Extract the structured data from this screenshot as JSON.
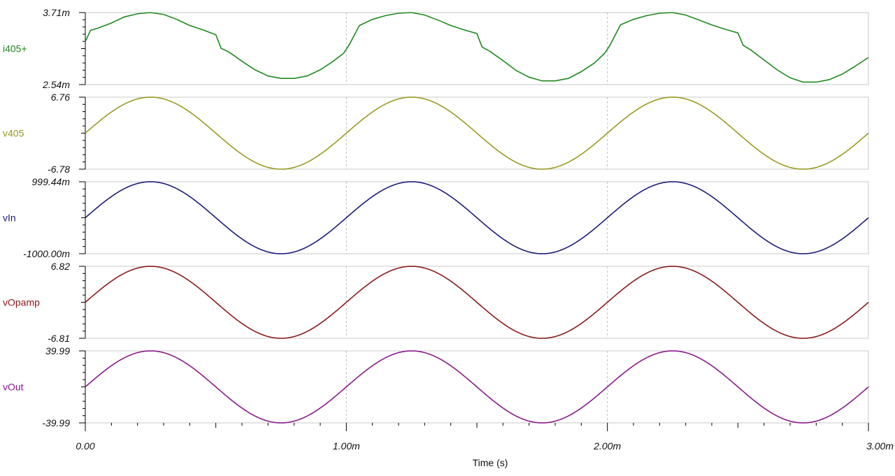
{
  "chart_data": {
    "type": "line",
    "xlabel": "Time (s)",
    "x_ticks": [
      "0.00",
      "1.00m",
      "2.00m",
      "3.00m"
    ],
    "xlim": [
      0,
      3
    ],
    "x_unit": "ms",
    "grid": "vertical dashed at major x ticks",
    "panels": [
      {
        "name": "i405+",
        "color": "#1f8a1f",
        "ylim_labels": [
          "3.71m",
          "2.54m"
        ],
        "ylim": [
          2.54,
          3.71
        ],
        "y_unit": "mA",
        "x": [
          0.0,
          0.02,
          0.05,
          0.1,
          0.15,
          0.2,
          0.25,
          0.3,
          0.35,
          0.4,
          0.45,
          0.5,
          0.52,
          0.55,
          0.6,
          0.65,
          0.7,
          0.75,
          0.8,
          0.85,
          0.9,
          0.95,
          0.99,
          1.01,
          1.05,
          1.1,
          1.15,
          1.2,
          1.25,
          1.3,
          1.35,
          1.4,
          1.45,
          1.5,
          1.52,
          1.55,
          1.6,
          1.65,
          1.7,
          1.75,
          1.8,
          1.85,
          1.9,
          1.95,
          1.99,
          2.01,
          2.05,
          2.1,
          2.15,
          2.2,
          2.25,
          2.3,
          2.35,
          2.4,
          2.45,
          2.5,
          2.52,
          2.55,
          2.6,
          2.65,
          2.7,
          2.75,
          2.8,
          2.85,
          2.9,
          2.95,
          3.0
        ],
        "y": [
          3.24,
          3.42,
          3.46,
          3.54,
          3.64,
          3.69,
          3.71,
          3.68,
          3.6,
          3.5,
          3.43,
          3.35,
          3.13,
          3.07,
          2.92,
          2.78,
          2.68,
          2.64,
          2.64,
          2.68,
          2.78,
          2.92,
          3.05,
          3.18,
          3.5,
          3.6,
          3.66,
          3.7,
          3.71,
          3.67,
          3.59,
          3.5,
          3.43,
          3.37,
          3.15,
          3.08,
          2.93,
          2.77,
          2.66,
          2.6,
          2.6,
          2.64,
          2.75,
          2.89,
          3.05,
          3.18,
          3.51,
          3.6,
          3.66,
          3.7,
          3.71,
          3.67,
          3.59,
          3.51,
          3.44,
          3.38,
          3.18,
          3.1,
          2.94,
          2.78,
          2.65,
          2.58,
          2.58,
          2.62,
          2.71,
          2.84,
          2.98
        ]
      },
      {
        "name": "v405",
        "color": "#9a9a22",
        "ylim_labels": [
          "6.76",
          "-6.78"
        ],
        "ylim": [
          -6.78,
          6.76
        ],
        "y_unit": "V",
        "function": "sine",
        "amplitude": 6.77,
        "offset": -0.01,
        "frequency_khz": 1
      },
      {
        "name": "vIn",
        "color": "#1c1c7a",
        "ylim_labels": [
          "999.44m",
          "-1000.00m"
        ],
        "ylim": [
          -1000.0,
          999.44
        ],
        "y_unit": "mV",
        "function": "sine",
        "amplitude": 999.72,
        "offset": -0.28,
        "frequency_khz": 1
      },
      {
        "name": "vOpamp",
        "color": "#8b1a1a",
        "ylim_labels": [
          "6.82",
          "-6.81"
        ],
        "ylim": [
          -6.81,
          6.82
        ],
        "y_unit": "V",
        "function": "sine",
        "amplitude": 6.815,
        "offset": 0.005,
        "frequency_khz": 1
      },
      {
        "name": "vOut",
        "color": "#8a1a8a",
        "ylim_labels": [
          "39.99",
          "-39.99"
        ],
        "ylim": [
          -39.99,
          39.99
        ],
        "y_unit": "V",
        "function": "sine",
        "amplitude": 39.99,
        "offset": 0,
        "frequency_khz": 1
      }
    ]
  }
}
